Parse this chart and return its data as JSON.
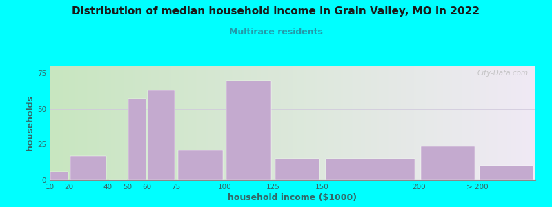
{
  "title": "Distribution of median household income in Grain Valley, MO in 2022",
  "subtitle": "Multirace residents",
  "xlabel": "household income ($1000)",
  "ylabel": "households",
  "bar_color": "#C4AACF",
  "background_color": "#00FFFF",
  "plot_bg_left": "#C8E6C0",
  "plot_bg_right": "#F0EAF5",
  "title_color": "#1a1a1a",
  "subtitle_color": "#2299AA",
  "axis_label_color": "#336666",
  "tick_color": "#336666",
  "watermark": "City-Data.com",
  "left_edges": [
    10,
    20,
    40,
    50,
    60,
    75,
    100,
    125,
    150,
    200,
    230
  ],
  "right_edges": [
    20,
    40,
    50,
    60,
    75,
    100,
    125,
    150,
    200,
    230,
    260
  ],
  "values": [
    6,
    17,
    0,
    57,
    63,
    21,
    70,
    15,
    15,
    24,
    10
  ],
  "xtick_positions": [
    10,
    20,
    40,
    50,
    60,
    75,
    100,
    125,
    150,
    200,
    230
  ],
  "xtick_labels": [
    "10",
    "20",
    "40",
    "50",
    "60",
    "75",
    "100",
    "125",
    "150",
    "200",
    "> 200"
  ],
  "xlim": [
    10,
    260
  ],
  "ylim": [
    0,
    80
  ],
  "yticks": [
    0,
    25,
    50,
    75
  ]
}
